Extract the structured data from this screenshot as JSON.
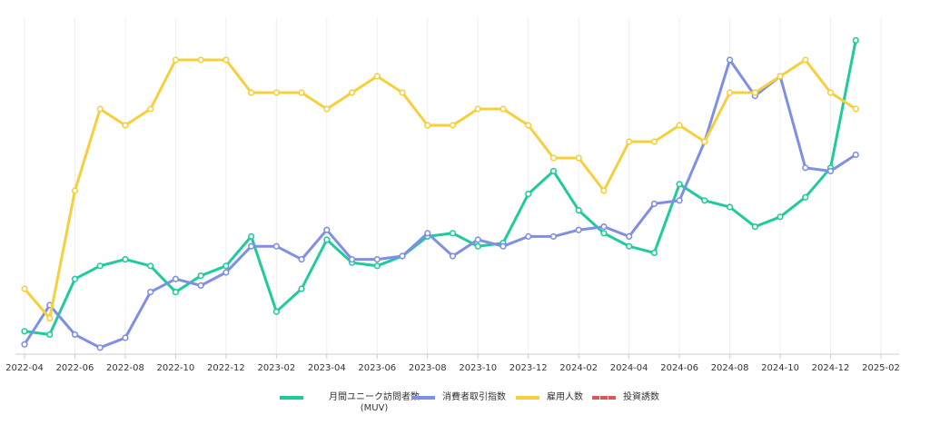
{
  "chart_data": {
    "type": "line",
    "x": [
      "2022-04",
      "2022-05",
      "2022-06",
      "2022-07",
      "2022-08",
      "2022-09",
      "2022-10",
      "2022-11",
      "2022-12",
      "2023-01",
      "2023-02",
      "2023-03",
      "2023-04",
      "2023-05",
      "2023-06",
      "2023-07",
      "2023-08",
      "2023-09",
      "2023-10",
      "2023-11",
      "2023-12",
      "2024-01",
      "2024-02",
      "2024-03",
      "2024-04",
      "2024-05",
      "2024-06",
      "2024-07",
      "2024-08",
      "2024-09",
      "2024-10",
      "2024-11",
      "2024-12",
      "2025-01"
    ],
    "xticks": [
      "2022-04",
      "2022-06",
      "2022-08",
      "2022-10",
      "2022-12",
      "2023-02",
      "2023-04",
      "2023-06",
      "2023-08",
      "2023-10",
      "2023-12",
      "2024-02",
      "2024-04",
      "2024-06",
      "2024-08",
      "2024-10",
      "2024-12",
      "2025-02"
    ],
    "ylim": [
      0,
      100
    ],
    "grid": true,
    "legend": "bottom",
    "series": [
      {
        "name": "月間ユニーク訪問者数\n(MUV)",
        "color": "#1fcb9c",
        "values": [
          7,
          6,
          23,
          27,
          29,
          27,
          19,
          24,
          27,
          36,
          13,
          20,
          35,
          28,
          27,
          30,
          36,
          37,
          33,
          34,
          49,
          56,
          44,
          37,
          33,
          31,
          52,
          47,
          45,
          39,
          42,
          48,
          57,
          96
        ]
      },
      {
        "name": "消費者取引指数",
        "color": "#7f8fe3",
        "values": [
          3,
          15,
          6,
          2,
          5,
          19,
          23,
          21,
          25,
          33,
          33,
          29,
          38,
          29,
          29,
          30,
          37,
          30,
          35,
          33,
          36,
          36,
          38,
          39,
          36,
          46,
          47,
          65,
          90,
          79,
          85,
          57,
          56,
          61
        ]
      },
      {
        "name": "雇用人数",
        "color": "#f6d03c",
        "values": [
          20,
          11,
          50,
          75,
          70,
          75,
          90,
          90,
          90,
          80,
          80,
          80,
          75,
          80,
          85,
          80,
          70,
          70,
          75,
          75,
          70,
          60,
          60,
          50,
          65,
          65,
          70,
          65,
          80,
          80,
          85,
          90,
          80,
          75
        ]
      },
      {
        "name": "投資誘数",
        "color": "#e05555",
        "dashed": true,
        "values": [
          null,
          null,
          null,
          null,
          null,
          null,
          null,
          null,
          null,
          null,
          null,
          null,
          null,
          null,
          null,
          null,
          null,
          null,
          null,
          null,
          null,
          null,
          null,
          null,
          null,
          null,
          null,
          null,
          null,
          null,
          null,
          null,
          null,
          null
        ]
      }
    ]
  }
}
